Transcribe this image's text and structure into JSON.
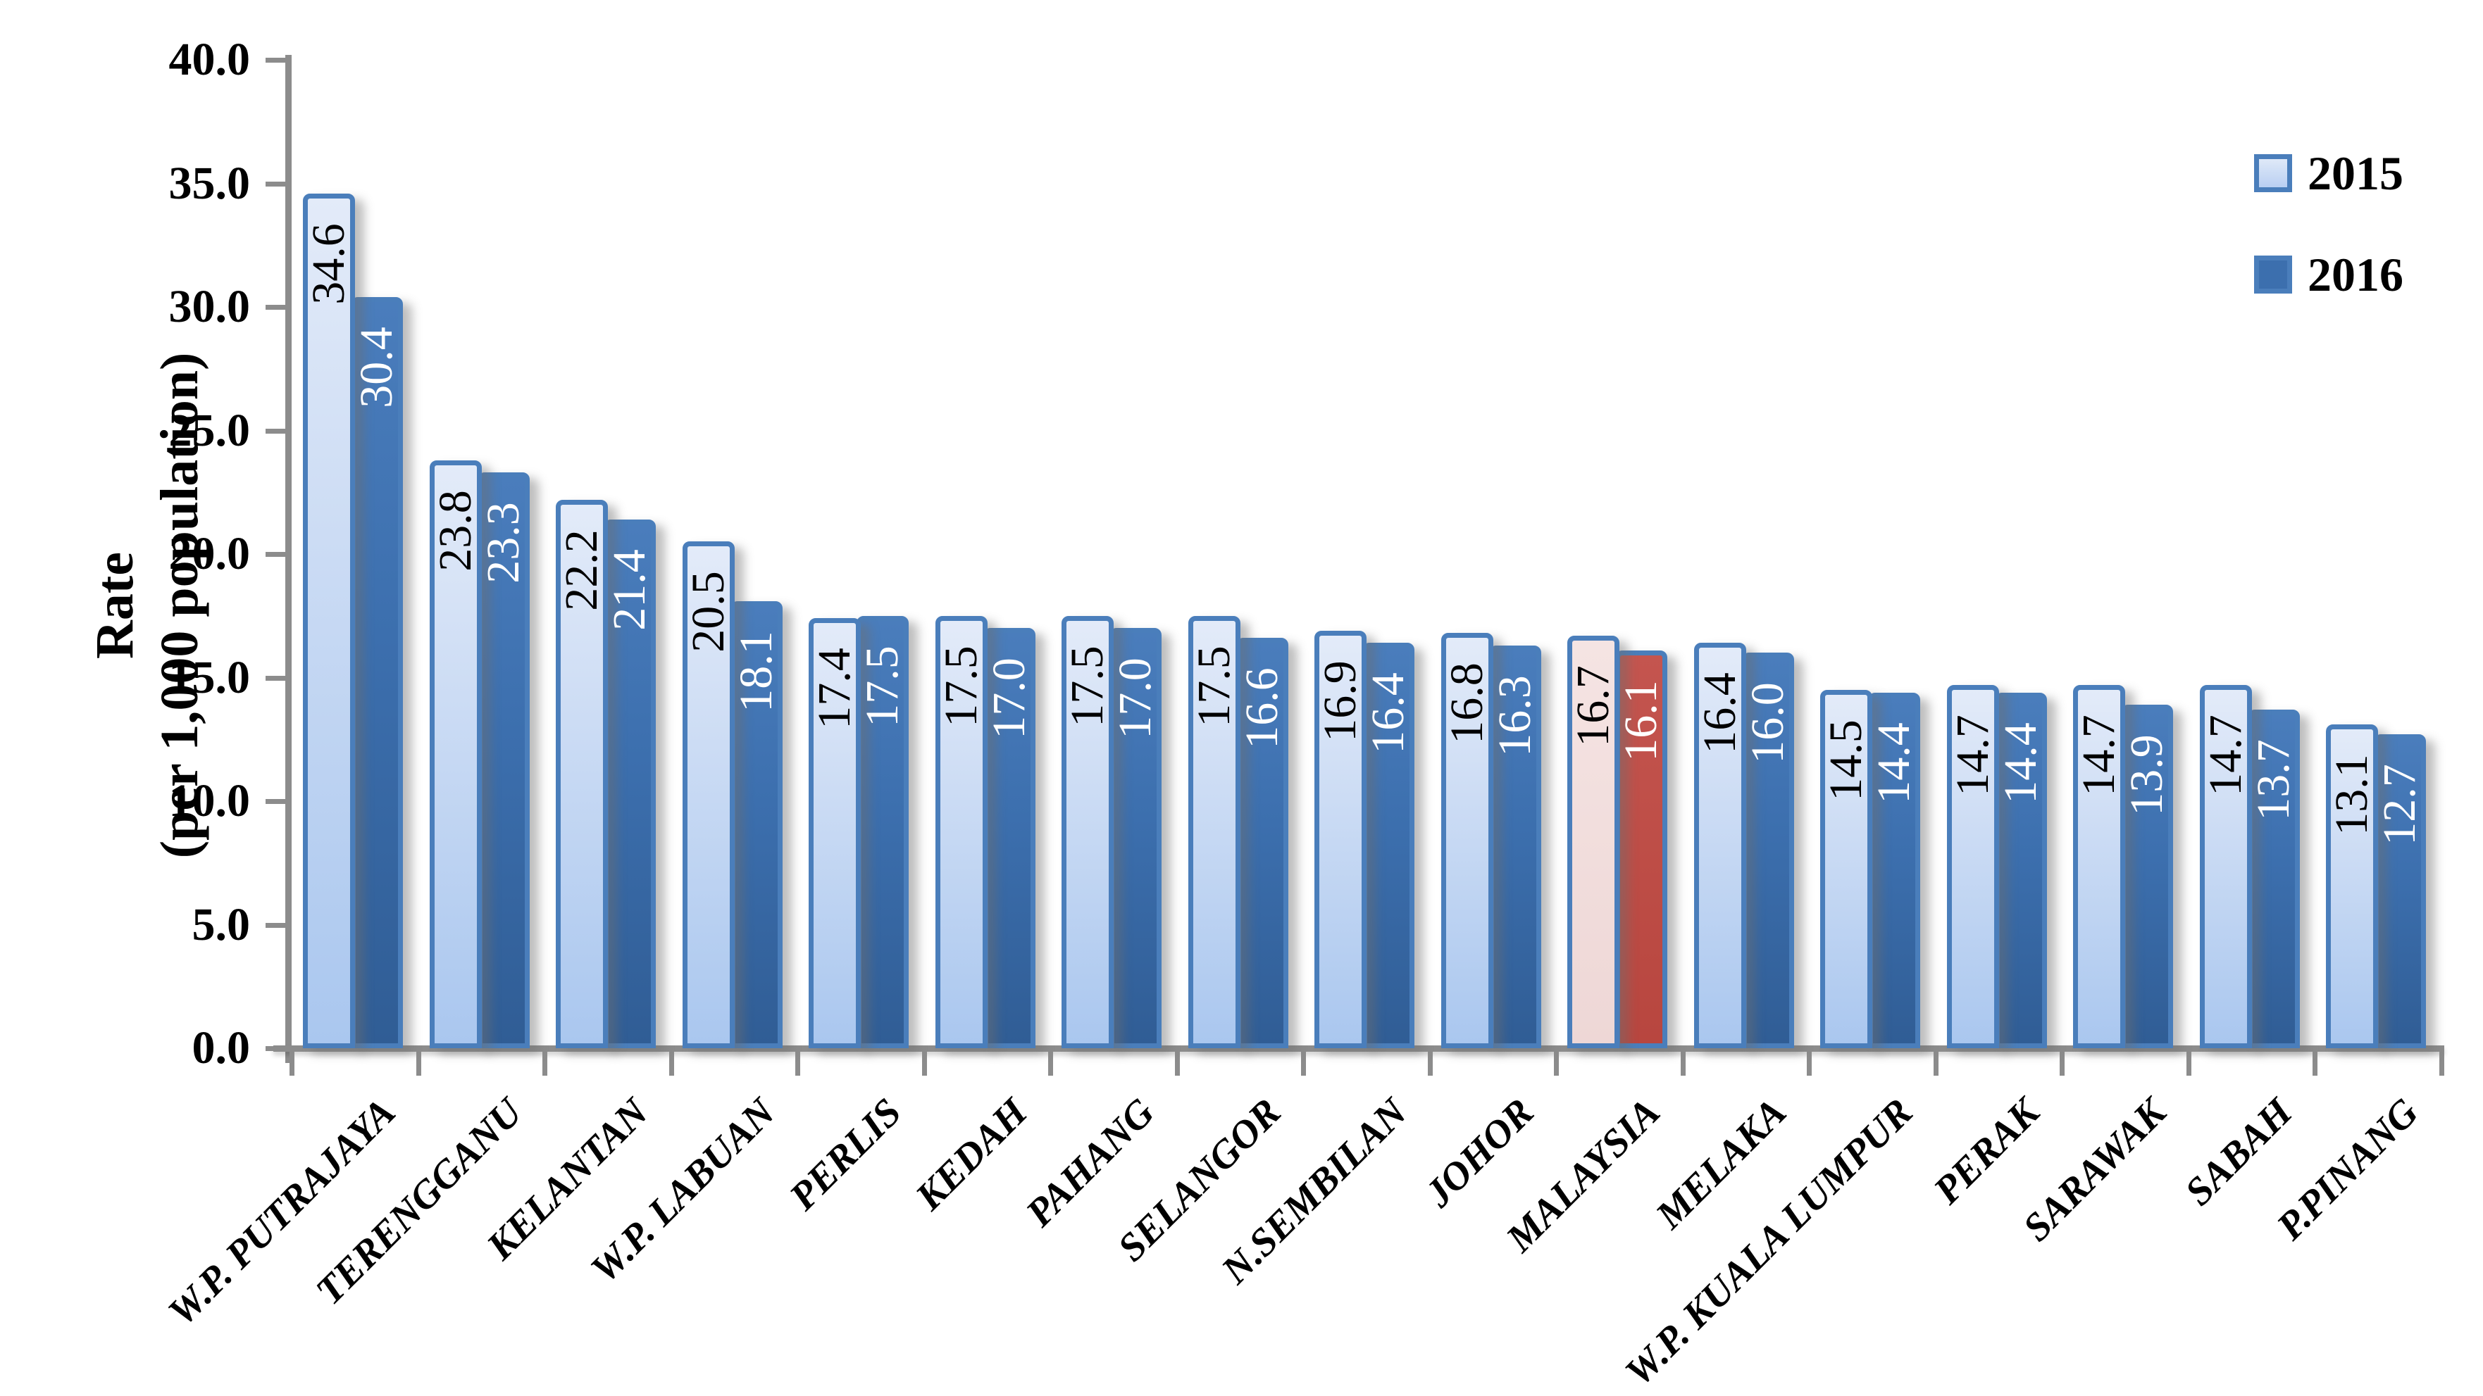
{
  "chart_data": {
    "type": "bar",
    "title": "",
    "ylabel_line1": "Rate",
    "ylabel_line2": "(per 1,000 population)",
    "y_axis": {
      "min": 0,
      "max": 40,
      "step": 5,
      "tick_labels": [
        "0.0",
        "5.0",
        "10.0",
        "15.0",
        "20.0",
        "25.0",
        "30.0",
        "35.0",
        "40.0"
      ]
    },
    "categories": [
      "W.P. PUTRAJAYA",
      "TERENGGANU",
      "KELANTAN",
      "W.P. LABUAN",
      "PERLIS",
      "KEDAH",
      "PAHANG",
      "SELANGOR",
      "N.SEMBILAN",
      "JOHOR",
      "MALAYSIA",
      "MELAKA",
      "W.P. KUALA LUMPUR",
      "PERAK",
      "SARAWAK",
      "SABAH",
      "P.PINANG"
    ],
    "series": [
      {
        "name": "2015",
        "values": [
          34.6,
          23.8,
          22.2,
          20.5,
          17.4,
          17.5,
          17.5,
          17.5,
          16.9,
          16.8,
          16.7,
          16.4,
          14.5,
          14.7,
          14.7,
          14.7,
          13.1
        ]
      },
      {
        "name": "2016",
        "values": [
          30.4,
          23.3,
          21.4,
          18.1,
          17.5,
          17.0,
          17.0,
          16.6,
          16.4,
          16.3,
          16.1,
          16.0,
          14.4,
          14.4,
          13.9,
          13.7,
          12.7
        ]
      }
    ],
    "highlight_category": "MALAYSIA",
    "highlight_index": 10,
    "legend_position": "top-right",
    "grid": "off",
    "colors": {
      "bar_2015_fill_top": "#e3ebf9",
      "bar_2015_fill_bottom": "#aac7ef",
      "bar_2016_fill_top": "#4a7dbc",
      "bar_2016_fill_bottom": "#305d95",
      "bar_border": "#4a7ebb",
      "highlight_2015_fill": "#f2dedd",
      "highlight_2016_fill": "#bc4a45",
      "axis": "#8c8c8c",
      "data_label_2015": "#000000",
      "data_label_2016": "#ffffff"
    }
  }
}
